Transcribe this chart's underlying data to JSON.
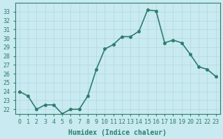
{
  "x": [
    0,
    1,
    2,
    3,
    4,
    5,
    6,
    7,
    8,
    9,
    10,
    11,
    12,
    13,
    14,
    15,
    16,
    17,
    18,
    19,
    20,
    21,
    22,
    23
  ],
  "y": [
    24,
    23.5,
    22,
    22.5,
    22.5,
    21.5,
    22,
    22,
    23.5,
    26.5,
    28.8,
    29.3,
    30.2,
    30.2,
    30.8,
    33.2,
    33.1,
    29.5,
    29.8,
    29.5,
    28.2,
    26.8,
    26.5,
    25.7
  ],
  "xlabel": "Humidex (Indice chaleur)",
  "line_color": "#2e7d6e",
  "marker_color": "#2e7d6e",
  "bg_color": "#c8eaf0",
  "grid_color": "#b0d8e0",
  "tick_label_color": "#2e7d6e",
  "axis_label_color": "#2e7d6e",
  "ylim": [
    21.5,
    34
  ],
  "xlim": [
    -0.5,
    23.5
  ],
  "yticks": [
    22,
    23,
    24,
    25,
    26,
    27,
    28,
    29,
    30,
    31,
    32,
    33
  ],
  "xticks": [
    0,
    1,
    2,
    3,
    4,
    5,
    6,
    7,
    8,
    9,
    10,
    11,
    12,
    13,
    14,
    15,
    16,
    17,
    18,
    19,
    20,
    21,
    22,
    23
  ],
  "fontsize_ticks": 6,
  "fontsize_xlabel": 7,
  "linewidth": 1.2,
  "markersize": 3
}
